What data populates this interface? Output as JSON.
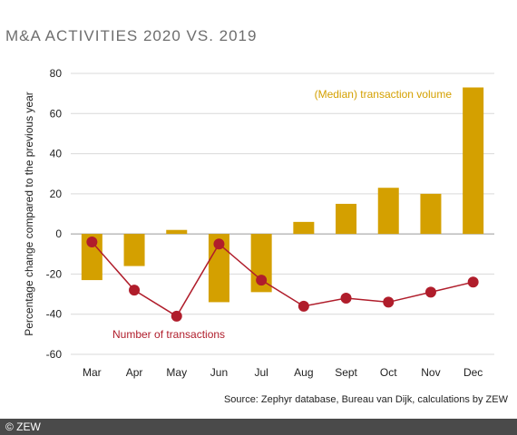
{
  "title": "M&A ACTIVITIES 2020 VS. 2019",
  "source": "Source: Zephyr database, Bureau van Dijk, calculations by ZEW",
  "copyright": "© ZEW",
  "colors": {
    "bar": "#d4a000",
    "line": "#b01d2b",
    "grid": "#d9d9d9",
    "title": "#6e6e6e"
  },
  "chart_data": {
    "type": "bar",
    "categories": [
      "Mar",
      "Apr",
      "May",
      "Jun",
      "Jul",
      "Aug",
      "Sept",
      "Oct",
      "Nov",
      "Dec"
    ],
    "ylabel": "Percentage change compared to the previous year",
    "ylim": [
      -60,
      80
    ],
    "yticks": [
      -60,
      -40,
      -20,
      0,
      20,
      40,
      60,
      80
    ],
    "grid": true,
    "series": [
      {
        "name": "(Median) transaction volume",
        "type": "bar",
        "values": [
          -23,
          -16,
          2,
          -34,
          -29,
          6,
          15,
          23,
          20,
          73
        ]
      },
      {
        "name": "Number of transactions",
        "type": "line",
        "values": [
          -4,
          -28,
          -41,
          -5,
          -23,
          -36,
          -32,
          -34,
          -29,
          -24
        ]
      }
    ]
  }
}
